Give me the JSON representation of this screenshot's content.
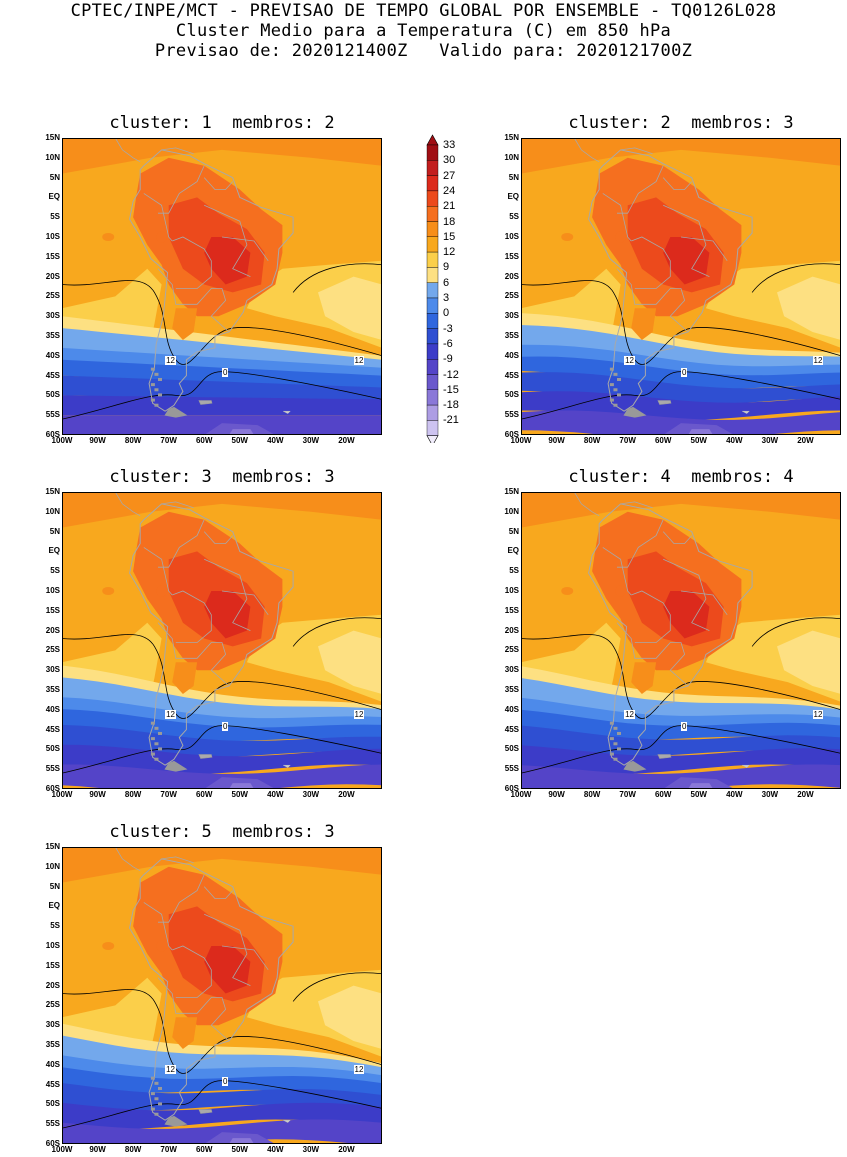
{
  "header": {
    "line1": "CPTEC/INPE/MCT - PREVISAO DE TEMPO GLOBAL POR ENSEMBLE - TQ0126L028",
    "line2": "Cluster Medio para a Temperatura (C) em 850 hPa",
    "line3": "Previsao de: 2020121400Z   Valido para: 2020121700Z"
  },
  "panels": [
    {
      "title": "cluster: 1  membros: 2"
    },
    {
      "title": "cluster: 2  membros: 3"
    },
    {
      "title": "cluster: 3  membros: 3"
    },
    {
      "title": "cluster: 4  membros: 4"
    },
    {
      "title": "cluster: 5  membros: 3"
    }
  ],
  "lat_labels": [
    "15N",
    "10N",
    "5N",
    "EQ",
    "5S",
    "10S",
    "15S",
    "20S",
    "25S",
    "30S",
    "35S",
    "40S",
    "45S",
    "50S",
    "55S",
    "60S"
  ],
  "lon_labels": [
    "100W",
    "90W",
    "80W",
    "70W",
    "60W",
    "50W",
    "40W",
    "30W",
    "20W"
  ],
  "contour_labels": {
    "twelve": "12",
    "zero": "0"
  },
  "colorbar": {
    "levels": [
      "33",
      "30",
      "27",
      "24",
      "21",
      "18",
      "15",
      "12",
      "9",
      "6",
      "3",
      "0",
      "-3",
      "-6",
      "-9",
      "-12",
      "-15",
      "-18",
      "-21"
    ],
    "colors": [
      "#a00e14",
      "#c21e1e",
      "#dc2a1c",
      "#ec4a1c",
      "#f56f1f",
      "#f78e1a",
      "#f8a81e",
      "#fbcf4a",
      "#fde082",
      "#73a8ec",
      "#4d8aea",
      "#2f66de",
      "#2f4fd2",
      "#3c3cc8",
      "#5444c8",
      "#6a58cc",
      "#8a78d8",
      "#ad9de4",
      "#cdc3f0"
    ]
  }
}
